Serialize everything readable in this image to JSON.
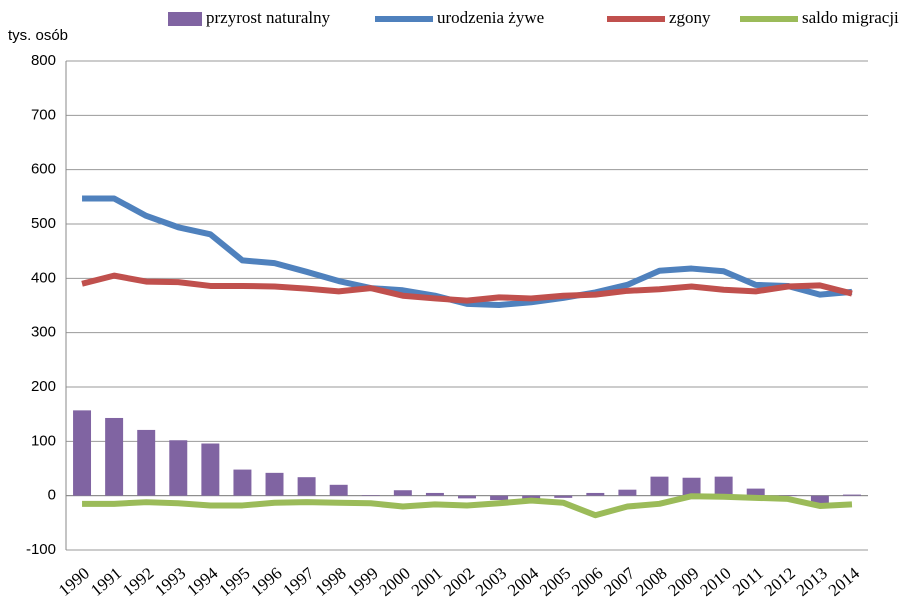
{
  "chart_data": {
    "type": "combo",
    "y_label": "tys. osób",
    "categories": [
      "1990",
      "1991",
      "1992",
      "1993",
      "1994",
      "1995",
      "1996",
      "1997",
      "1998",
      "1999",
      "2000",
      "2001",
      "2002",
      "2003",
      "2004",
      "2005",
      "2006",
      "2007",
      "2008",
      "2009",
      "2010",
      "2011",
      "2012",
      "2013",
      "2014"
    ],
    "series": [
      {
        "name": "przyrost naturalny",
        "type": "bar",
        "color": "#8064a2",
        "values": [
          157,
          143,
          121,
          102,
          96,
          48,
          42,
          34,
          20,
          1,
          10,
          5,
          -5,
          -8,
          -7,
          -4,
          5,
          11,
          35,
          33,
          35,
          13,
          1,
          -17,
          2
        ]
      },
      {
        "name": "urodzenia żywe",
        "type": "line",
        "color": "#4f81bd",
        "values": [
          547,
          547,
          515,
          494,
          481,
          433,
          428,
          412,
          395,
          382,
          378,
          368,
          353,
          351,
          356,
          364,
          374,
          388,
          414,
          418,
          413,
          388,
          386,
          370,
          375
        ]
      },
      {
        "name": "zgony",
        "type": "line",
        "color": "#c0504d",
        "values": [
          390,
          405,
          394,
          393,
          386,
          386,
          385,
          381,
          376,
          382,
          368,
          363,
          359,
          365,
          363,
          368,
          370,
          377,
          380,
          385,
          379,
          376,
          385,
          387,
          372
        ]
      },
      {
        "name": "saldo migracji",
        "type": "line",
        "color": "#9bbb59",
        "values": [
          -15,
          -15,
          -12,
          -14,
          -18,
          -18,
          -13,
          -12,
          -13,
          -14,
          -20,
          -16,
          -18,
          -14,
          -9,
          -13,
          -36,
          -20,
          -15,
          -1,
          -2,
          -4,
          -6,
          -19,
          -16
        ]
      }
    ],
    "ylim": [
      -100,
      800
    ],
    "yticks": [
      -100,
      0,
      100,
      200,
      300,
      400,
      500,
      600,
      700,
      800
    ],
    "grid": true
  }
}
